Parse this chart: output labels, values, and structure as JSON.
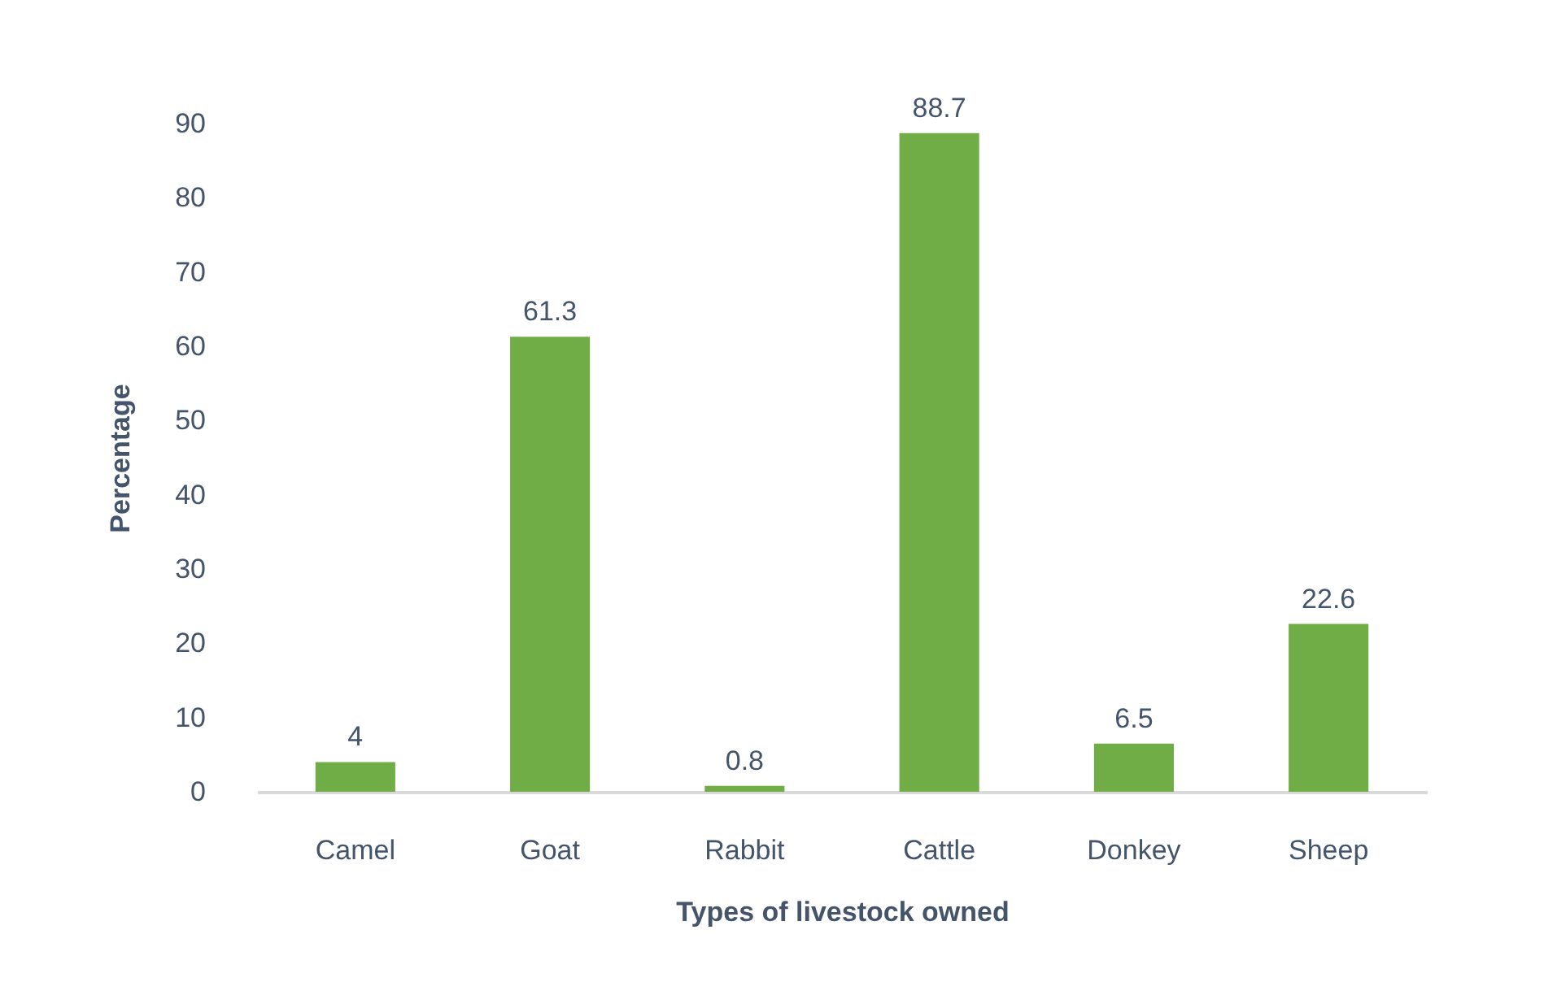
{
  "chart_data": {
    "type": "bar",
    "xlabel": "Types of livestock owned",
    "ylabel": "Percentage",
    "categories": [
      "Camel",
      "Goat",
      "Rabbit",
      "Cattle",
      "Donkey",
      "Sheep"
    ],
    "values": [
      4,
      61.3,
      0.8,
      88.7,
      6.5,
      22.6
    ],
    "color": "#70ad47",
    "ylim": [
      0,
      90
    ],
    "yticks": [
      0,
      10,
      20,
      30,
      40,
      50,
      60,
      70,
      80,
      90
    ],
    "data_labels": true
  }
}
